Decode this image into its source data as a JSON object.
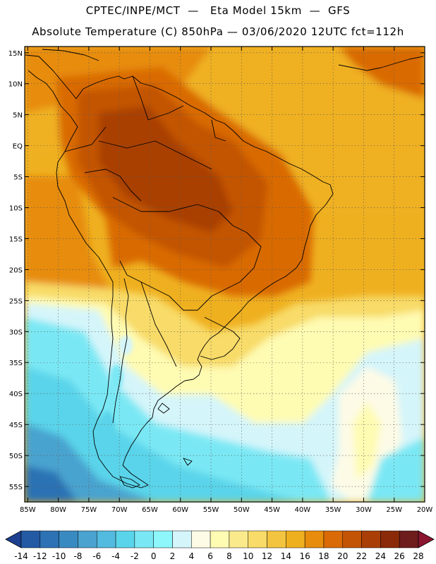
{
  "header": {
    "line1": "CPTEC/INPE/MCT  —   Eta Model 15km  —  GFS",
    "line2": "Absolute Temperature (C) 850hPa — 03/06/2020 12UTC fct=112h"
  },
  "map": {
    "lat_labels": [
      "15N",
      "10N",
      "5N",
      "EQ",
      "5S",
      "10S",
      "15S",
      "20S",
      "25S",
      "30S",
      "35S",
      "40S",
      "45S",
      "50S",
      "55S"
    ],
    "lat_values": [
      15,
      10,
      5,
      0,
      -5,
      -10,
      -15,
      -20,
      -25,
      -30,
      -35,
      -40,
      -45,
      -50,
      -55
    ],
    "lon_labels": [
      "85W",
      "80W",
      "75W",
      "70W",
      "65W",
      "60W",
      "55W",
      "50W",
      "45W",
      "40W",
      "35W",
      "30W",
      "25W",
      "20W"
    ],
    "lon_values": [
      -85,
      -80,
      -75,
      -70,
      -65,
      -60,
      -55,
      -50,
      -45,
      -40,
      -35,
      -30,
      -25,
      -20
    ],
    "extent": {
      "lon_min": -85.5,
      "lon_max": -20,
      "lat_min": -57.5,
      "lat_max": 16
    }
  },
  "colorbar": {
    "labels": [
      "-14",
      "-12",
      "-10",
      "-8",
      "-6",
      "-4",
      "-2",
      "0",
      "2",
      "4",
      "6",
      "8",
      "10",
      "12",
      "14",
      "16",
      "18",
      "20",
      "22",
      "24",
      "26",
      "28"
    ],
    "colors": [
      "#1c3f8f",
      "#245aa3",
      "#2c72b4",
      "#3a8ac2",
      "#4aa3cf",
      "#52bbdf",
      "#5ad4ea",
      "#7ae8f4",
      "#8ef7fb",
      "#d4f5fa",
      "#fdfbe6",
      "#fefbb2",
      "#fbea8c",
      "#f8db68",
      "#f3c440",
      "#efb020",
      "#e78c0c",
      "#d96a06",
      "#c35406",
      "#a93f06",
      "#8a2a08",
      "#6e1c1c",
      "#8b1530"
    ]
  },
  "temperature_field": {
    "units": "C",
    "regions": [
      {
        "name": "amazon_core",
        "value": 22
      },
      {
        "name": "central_brazil",
        "value": 22
      },
      {
        "name": "northern_ocean",
        "value": 16
      },
      {
        "name": "southern_brazil",
        "value": 8
      },
      {
        "name": "patagonia_coast",
        "value": 2
      },
      {
        "name": "southern_ocean_far",
        "value": -8
      }
    ]
  }
}
